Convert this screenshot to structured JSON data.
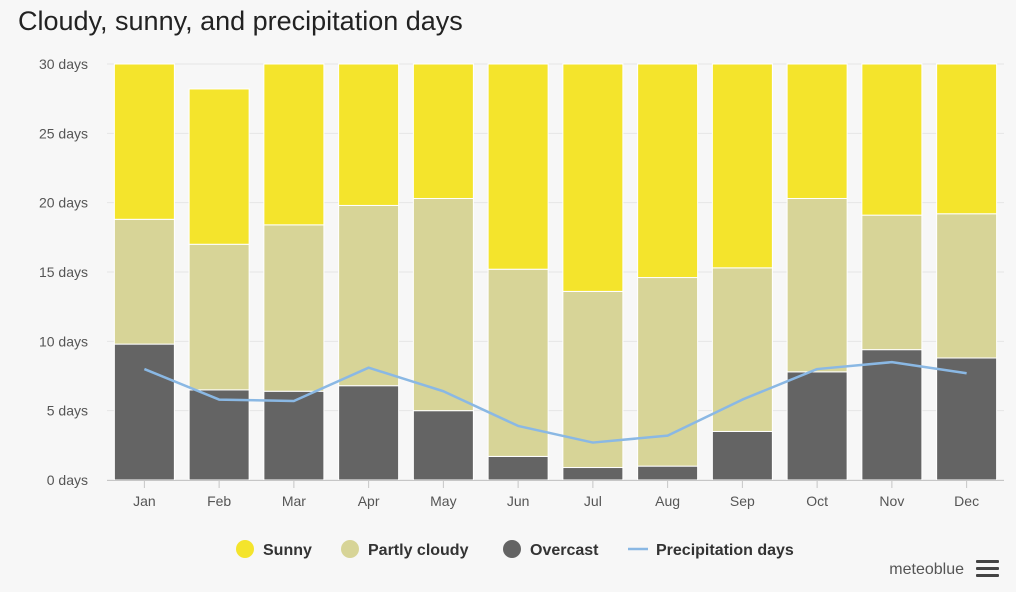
{
  "title": "Cloudy, sunny, and precipitation days",
  "credit": "meteoblue",
  "colors": {
    "sunny": "#f4e42c",
    "partly_cloudy": "#d7d497",
    "overcast": "#646464",
    "precipitation": "#8ab8e4",
    "grid": "#e6e6e6",
    "background": "#f7f7f7"
  },
  "chart_data": {
    "type": "bar",
    "stacked": true,
    "title": "Cloudy, sunny, and precipitation days",
    "categories": [
      "Jan",
      "Feb",
      "Mar",
      "Apr",
      "May",
      "Jun",
      "Jul",
      "Aug",
      "Sep",
      "Oct",
      "Nov",
      "Dec"
    ],
    "yticks": [
      "0 days",
      "5 days",
      "10 days",
      "15 days",
      "20 days",
      "25 days",
      "30 days"
    ],
    "ylim": [
      0,
      30
    ],
    "series": [
      {
        "name": "Overcast",
        "key": "overcast",
        "values": [
          9.8,
          6.5,
          6.4,
          6.8,
          5.0,
          1.7,
          0.9,
          1.0,
          3.5,
          7.8,
          9.4,
          8.8
        ]
      },
      {
        "name": "Partly cloudy",
        "key": "partly_cloudy",
        "values": [
          9.0,
          10.5,
          12.0,
          13.0,
          15.3,
          13.5,
          12.7,
          13.6,
          11.8,
          12.5,
          9.7,
          10.4
        ]
      },
      {
        "name": "Sunny",
        "key": "sunny",
        "values": [
          11.2,
          11.2,
          11.6,
          10.2,
          9.7,
          14.8,
          16.4,
          15.4,
          14.7,
          9.7,
          10.9,
          10.8
        ]
      }
    ],
    "line": {
      "name": "Precipitation days",
      "key": "precipitation",
      "values": [
        8.0,
        5.8,
        5.7,
        8.1,
        6.4,
        3.9,
        2.7,
        3.2,
        5.8,
        8.0,
        8.5,
        7.7
      ]
    },
    "legend": [
      "Sunny",
      "Partly cloudy",
      "Overcast",
      "Precipitation days"
    ]
  }
}
